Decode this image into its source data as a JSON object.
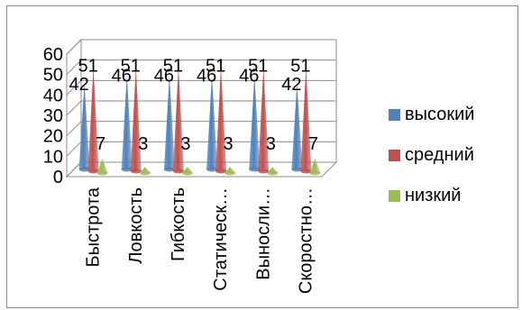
{
  "chart_data": {
    "type": "bar",
    "title": "",
    "xlabel": "",
    "ylabel": "",
    "ylim": [
      0,
      60
    ],
    "yticks": [
      0,
      10,
      20,
      30,
      40,
      50,
      60
    ],
    "categories": [
      "Быстрота",
      "Ловкость",
      "Гибкость",
      "Статическ…",
      "Выносли…",
      "Скоростно…"
    ],
    "series": [
      {
        "name": "высокий",
        "values": [
          42,
          46,
          46,
          46,
          46,
          42
        ],
        "color": "#4f81bd"
      },
      {
        "name": "средний",
        "values": [
          51,
          51,
          51,
          51,
          51,
          51
        ],
        "color": "#c0504d"
      },
      {
        "name": "низкий",
        "values": [
          7,
          3,
          3,
          3,
          3,
          7
        ],
        "color": "#9bbb59"
      }
    ],
    "grid": true,
    "legend_position": "right",
    "style": "3d-cone"
  }
}
